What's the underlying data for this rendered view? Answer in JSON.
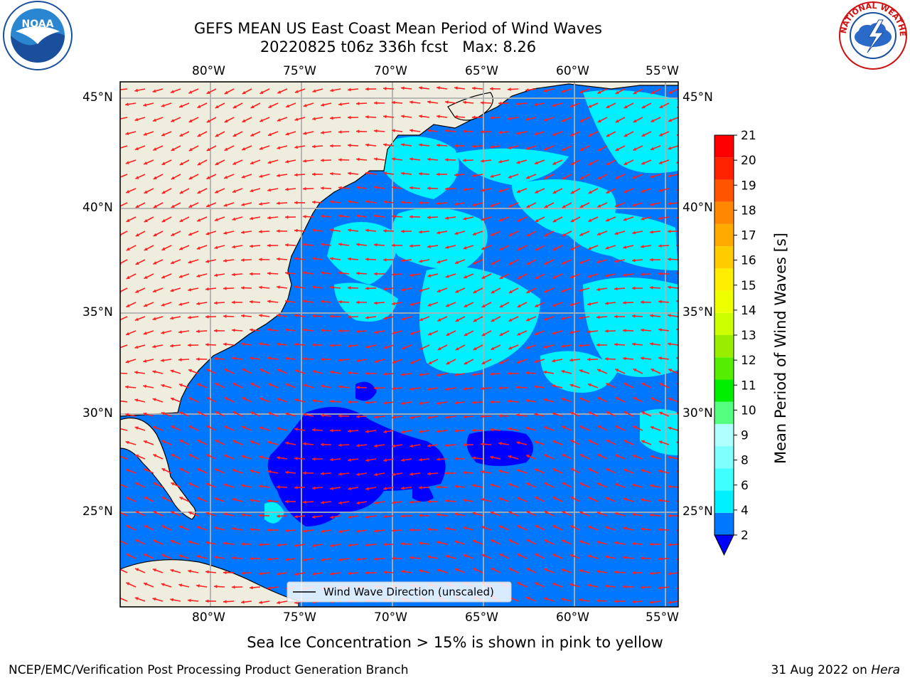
{
  "title": {
    "line1": "GEFS MEAN US East Coast Mean Period of Wind Waves",
    "line2": "20220825 t06z 336h fcst   Max: 8.26"
  },
  "logos": {
    "left": {
      "name": "noaa-logo",
      "text": "NOAA"
    },
    "right": {
      "name": "nws-logo",
      "text": "NATIONAL WEATHER SERVICE"
    }
  },
  "map": {
    "lon_range": [
      -85,
      -54
    ],
    "lat_range": [
      20.5,
      46.5
    ],
    "lon_labels": [
      "80°W",
      "75°W",
      "70°W",
      "65°W",
      "60°W",
      "55°W"
    ],
    "lat_labels": [
      "45°N",
      "40°N",
      "35°N",
      "30°N",
      "25°N"
    ],
    "land_color": "#efeddd",
    "grid_color": "#b0b0b0",
    "arrow_color": "#ff2020",
    "legend_label": "Wind Wave Direction (unscaled)"
  },
  "colorbar": {
    "title": "Mean Period of Wind Waves [s]",
    "ticks": [
      "2",
      "4",
      "6",
      "8",
      "9",
      "10",
      "11",
      "12",
      "13",
      "14",
      "15",
      "16",
      "17",
      "18",
      "19",
      "20",
      "21"
    ],
    "colors": [
      "#0077ff",
      "#00f0ff",
      "#40ffff",
      "#80ffff",
      "#b0ffff",
      "#55ff80",
      "#00ee00",
      "#55ee00",
      "#99ee00",
      "#ccff00",
      "#eeff00",
      "#ffee00",
      "#ffcc00",
      "#ffaa00",
      "#ff8800",
      "#ff5500",
      "#ff2200",
      "#ff0000"
    ],
    "extend_color": "#0000ff"
  },
  "footnote": "Sea Ice Concentration > 15% is shown in pink to yellow",
  "credit": "NCEP/EMC/Verification Post Processing Product Generation Branch",
  "run_date": "31 Aug 2022 on",
  "host": "Hera"
}
